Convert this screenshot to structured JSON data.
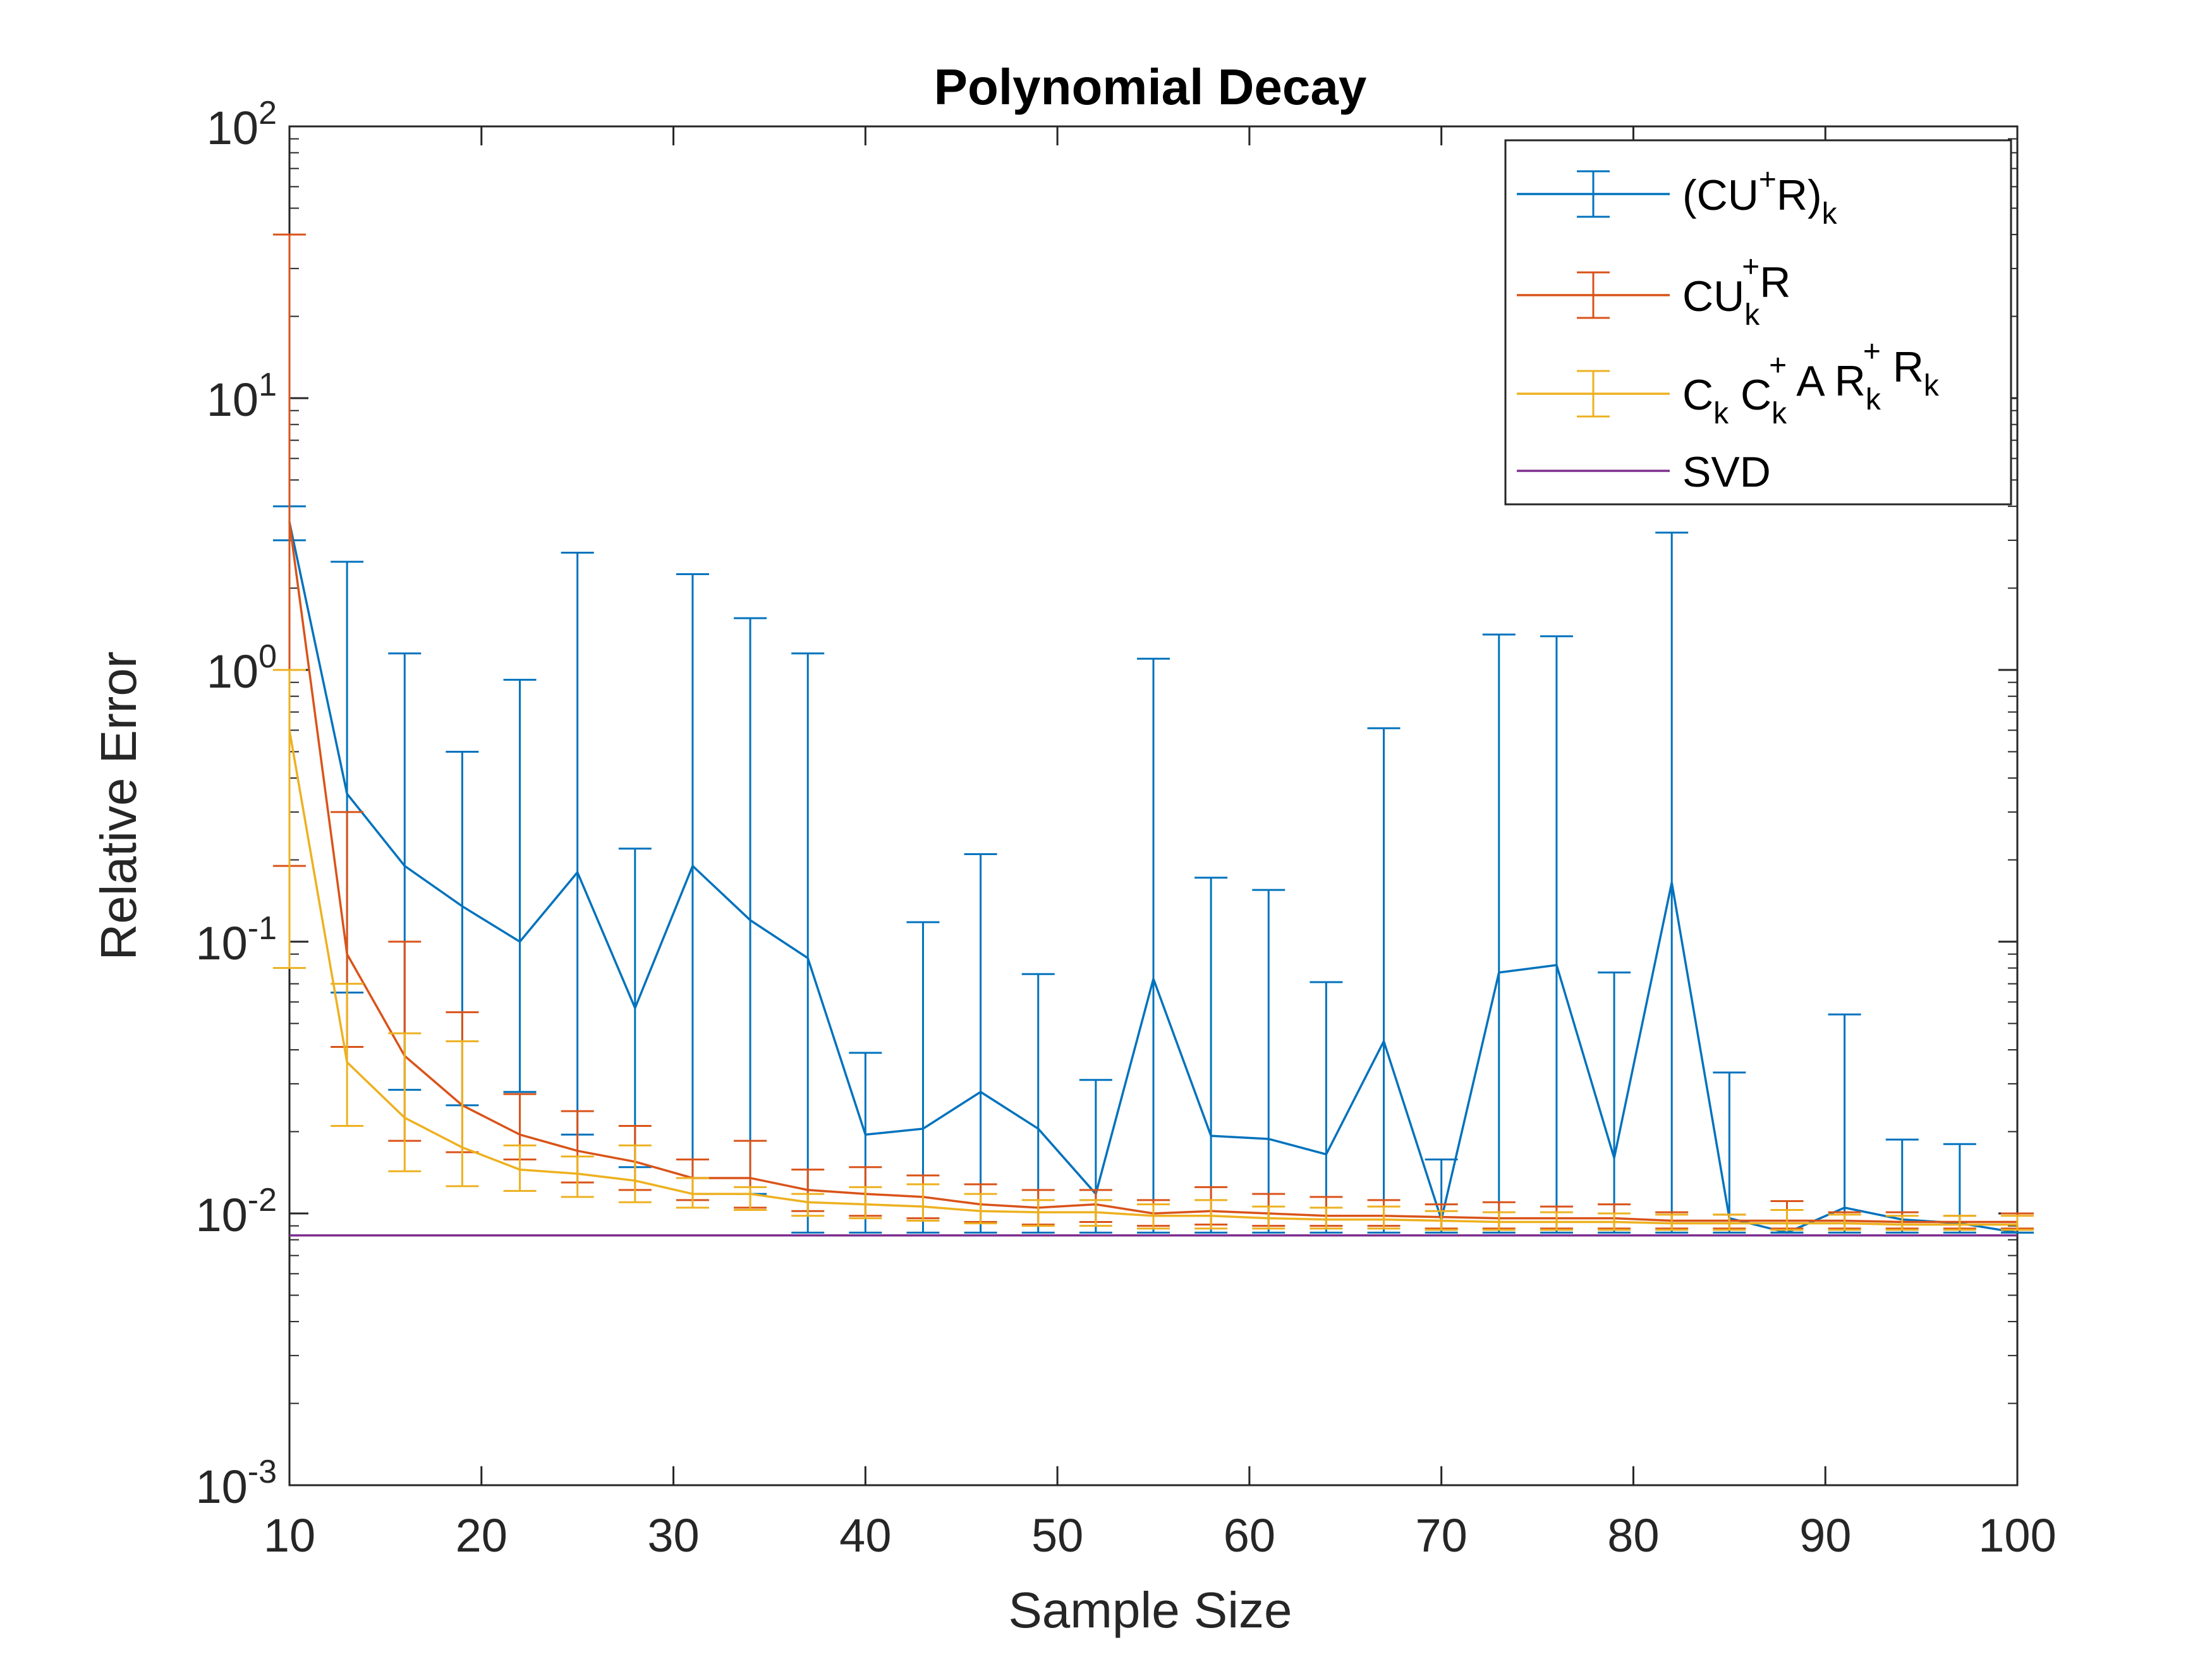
{
  "chart_data": {
    "type": "line",
    "title": "Polynomial Decay",
    "xlabel": "Sample Size",
    "ylabel": "Relative Error",
    "xlim": [
      10,
      100
    ],
    "ylim": [
      0.001,
      100
    ],
    "yscale": "log",
    "grid": false,
    "legend_position": "top-right",
    "x": [
      10,
      13,
      16,
      19,
      22,
      25,
      28,
      31,
      34,
      37,
      40,
      43,
      46,
      49,
      52,
      55,
      58,
      61,
      64,
      67,
      70,
      73,
      76,
      79,
      82,
      85,
      88,
      91,
      94,
      97,
      100
    ],
    "xticks": [
      {
        "value": 10,
        "label": "10"
      },
      {
        "value": 20,
        "label": "20"
      },
      {
        "value": 30,
        "label": "30"
      },
      {
        "value": 40,
        "label": "40"
      },
      {
        "value": 50,
        "label": "50"
      },
      {
        "value": 60,
        "label": "60"
      },
      {
        "value": 70,
        "label": "70"
      },
      {
        "value": 80,
        "label": "80"
      },
      {
        "value": 90,
        "label": "90"
      },
      {
        "value": 100,
        "label": "100"
      }
    ],
    "yticks": [
      {
        "value": 0.001,
        "base": "10",
        "exp": "-3"
      },
      {
        "value": 0.01,
        "base": "10",
        "exp": "-2"
      },
      {
        "value": 0.1,
        "base": "10",
        "exp": "-1"
      },
      {
        "value": 1,
        "base": "10",
        "exp": "0"
      },
      {
        "value": 10,
        "base": "10",
        "exp": "1"
      },
      {
        "value": 100,
        "base": "10",
        "exp": "2"
      }
    ],
    "series": [
      {
        "name": "(CU+R)k",
        "color": "#0072BD",
        "values": [
          3.5,
          0.35,
          0.19,
          0.135,
          0.1,
          0.18,
          0.057,
          0.19,
          0.12,
          0.087,
          0.0195,
          0.0205,
          0.028,
          0.0205,
          0.0118,
          0.073,
          0.0193,
          0.0188,
          0.0165,
          0.043,
          0.0095,
          0.077,
          0.082,
          0.016,
          0.165,
          0.0096,
          0.0085,
          0.0105,
          0.0095,
          0.0092,
          0.0085
        ],
        "upper": [
          4.0,
          2.5,
          1.15,
          0.5,
          0.92,
          2.7,
          0.22,
          2.25,
          1.55,
          1.15,
          0.039,
          0.118,
          0.21,
          0.076,
          0.031,
          1.1,
          0.172,
          0.155,
          0.071,
          0.61,
          0.0158,
          1.35,
          1.33,
          0.077,
          3.2,
          0.033,
          0.0085,
          0.054,
          0.0187,
          0.018,
          0.0085
        ],
        "lower": [
          3.0,
          0.065,
          0.0285,
          0.025,
          0.028,
          0.0195,
          0.0148,
          0.0135,
          0.0118,
          0.0085,
          0.0085,
          0.0085,
          0.0085,
          0.0085,
          0.0085,
          0.0085,
          0.0085,
          0.0085,
          0.0085,
          0.0085,
          0.0085,
          0.0085,
          0.0085,
          0.0085,
          0.0085,
          0.0085,
          0.0085,
          0.0085,
          0.0085,
          0.0085,
          0.0085
        ]
      },
      {
        "name": "CUk+R",
        "color": "#D95319",
        "values": [
          3.5,
          0.09,
          0.038,
          0.025,
          0.0195,
          0.017,
          0.0155,
          0.0135,
          0.0135,
          0.0122,
          0.0118,
          0.0115,
          0.0108,
          0.0105,
          0.0108,
          0.01,
          0.0102,
          0.01,
          0.0098,
          0.0098,
          0.0097,
          0.0096,
          0.0096,
          0.0096,
          0.0094,
          0.0094,
          0.0094,
          0.0094,
          0.0093,
          0.0093,
          0.0093
        ],
        "upper": [
          40,
          0.3,
          0.1,
          0.055,
          0.0275,
          0.0238,
          0.021,
          0.0158,
          0.0185,
          0.0145,
          0.0148,
          0.0138,
          0.0128,
          0.0122,
          0.0122,
          0.0112,
          0.0125,
          0.0118,
          0.0115,
          0.0112,
          0.0108,
          0.011,
          0.0106,
          0.0108,
          0.0101,
          0.0099,
          0.0111,
          0.0101,
          0.0101,
          0.0098,
          0.01
        ],
        "lower": [
          0.19,
          0.041,
          0.0185,
          0.0168,
          0.0158,
          0.013,
          0.0122,
          0.0112,
          0.0105,
          0.0102,
          0.0098,
          0.0096,
          0.0093,
          0.0091,
          0.0093,
          0.009,
          0.0091,
          0.009,
          0.009,
          0.009,
          0.0088,
          0.0088,
          0.0088,
          0.0088,
          0.0088,
          0.0088,
          0.0088,
          0.0088,
          0.0088,
          0.0088,
          0.0088
        ]
      },
      {
        "name": "Ck Ck+ A Rk+ Rk",
        "color": "#EDB120",
        "values": [
          0.6,
          0.036,
          0.0225,
          0.0175,
          0.0145,
          0.014,
          0.0132,
          0.0118,
          0.0118,
          0.011,
          0.0108,
          0.0106,
          0.0102,
          0.0101,
          0.0101,
          0.0098,
          0.0098,
          0.0096,
          0.0095,
          0.0095,
          0.0094,
          0.0093,
          0.0093,
          0.0093,
          0.0092,
          0.0092,
          0.0092,
          0.0092,
          0.0091,
          0.0091,
          0.0091
        ],
        "upper": [
          1.0,
          0.07,
          0.046,
          0.043,
          0.0178,
          0.0162,
          0.0178,
          0.0135,
          0.0125,
          0.0118,
          0.0125,
          0.0128,
          0.0118,
          0.0112,
          0.0112,
          0.0108,
          0.0112,
          0.0106,
          0.0105,
          0.0106,
          0.0102,
          0.0101,
          0.0101,
          0.01,
          0.0099,
          0.0099,
          0.0103,
          0.0099,
          0.0098,
          0.0098,
          0.0098
        ],
        "lower": [
          0.08,
          0.021,
          0.0143,
          0.0126,
          0.0121,
          0.0115,
          0.011,
          0.0105,
          0.0103,
          0.0098,
          0.0096,
          0.0094,
          0.0092,
          0.009,
          0.009,
          0.0088,
          0.0088,
          0.0088,
          0.0088,
          0.0088,
          0.0087,
          0.0087,
          0.0087,
          0.0087,
          0.0087,
          0.0087,
          0.0087,
          0.0087,
          0.0087,
          0.0087,
          0.0087
        ]
      },
      {
        "name": "SVD",
        "color": "#7E2F8E",
        "values": [
          0.0083,
          0.0083
        ],
        "x": [
          10,
          100
        ]
      }
    ],
    "legend": [
      {
        "parts": [
          [
            "",
            "(CU"
          ],
          [
            "sup",
            "+"
          ],
          [
            "",
            "R)"
          ],
          [
            "sub",
            "k"
          ]
        ]
      },
      {
        "parts": [
          [
            "",
            "CU"
          ],
          [
            "sub",
            "k"
          ],
          [
            "supshift",
            "+"
          ],
          [
            "",
            "R"
          ]
        ]
      },
      {
        "parts": [
          [
            "",
            "C"
          ],
          [
            "sub",
            "k"
          ],
          [
            "",
            " C"
          ],
          [
            "sub",
            "k"
          ],
          [
            "supshift",
            "+"
          ],
          [
            "",
            " A R"
          ],
          [
            "sub",
            "k"
          ],
          [
            "supshift",
            "+"
          ],
          [
            "",
            " R"
          ],
          [
            "sub",
            "k"
          ]
        ]
      },
      {
        "parts": [
          [
            "",
            "SVD"
          ]
        ]
      }
    ]
  }
}
